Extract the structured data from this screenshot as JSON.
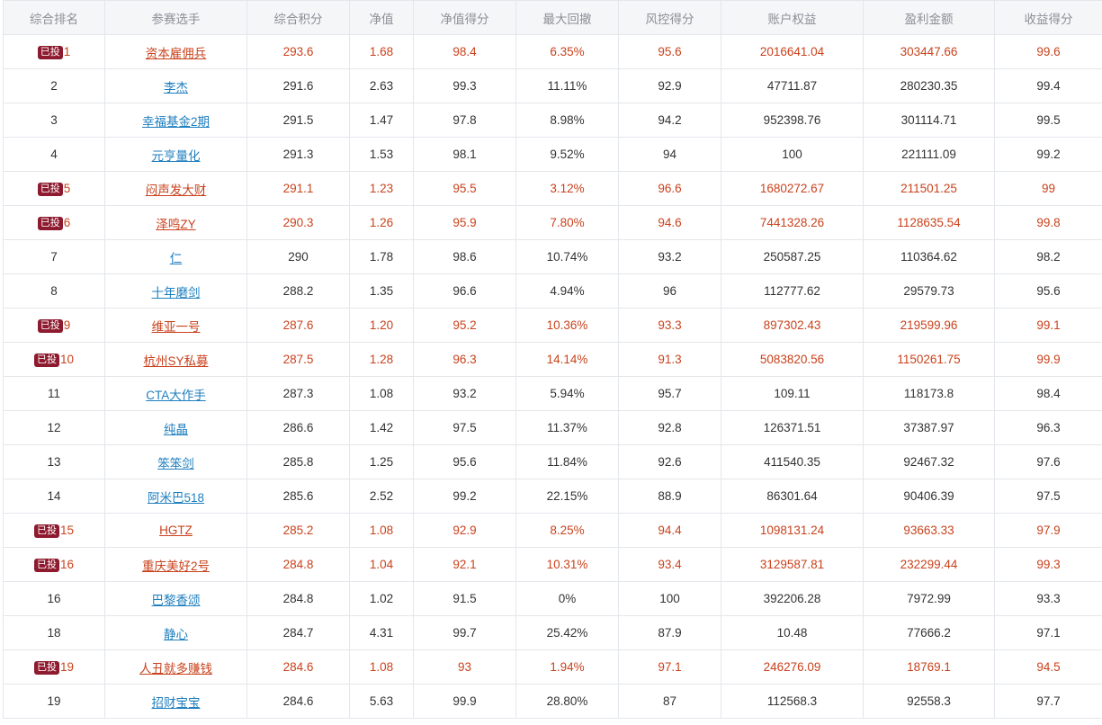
{
  "table": {
    "headers": [
      "综合排名",
      "参赛选手",
      "综合积分",
      "净值",
      "净值得分",
      "最大回撤",
      "风控得分",
      "账户权益",
      "盈利金额",
      "收益得分"
    ],
    "badge_label": "已投",
    "rows": [
      {
        "rank": "1",
        "name": "资本雇佣兵",
        "score": "293.6",
        "nav": "1.68",
        "nav_score": "98.4",
        "max_drawdown": "6.35%",
        "risk_score": "95.6",
        "equity": "2016641.04",
        "profit": "303447.66",
        "return_score": "99.6",
        "invested": true
      },
      {
        "rank": "2",
        "name": "李杰",
        "score": "291.6",
        "nav": "2.63",
        "nav_score": "99.3",
        "max_drawdown": "11.11%",
        "risk_score": "92.9",
        "equity": "47711.87",
        "profit": "280230.35",
        "return_score": "99.4",
        "invested": false
      },
      {
        "rank": "3",
        "name": "幸福基金2期",
        "score": "291.5",
        "nav": "1.47",
        "nav_score": "97.8",
        "max_drawdown": "8.98%",
        "risk_score": "94.2",
        "equity": "952398.76",
        "profit": "301114.71",
        "return_score": "99.5",
        "invested": false
      },
      {
        "rank": "4",
        "name": "元亨量化",
        "score": "291.3",
        "nav": "1.53",
        "nav_score": "98.1",
        "max_drawdown": "9.52%",
        "risk_score": "94",
        "equity": "100",
        "profit": "221111.09",
        "return_score": "99.2",
        "invested": false
      },
      {
        "rank": "5",
        "name": "闷声发大财",
        "score": "291.1",
        "nav": "1.23",
        "nav_score": "95.5",
        "max_drawdown": "3.12%",
        "risk_score": "96.6",
        "equity": "1680272.67",
        "profit": "211501.25",
        "return_score": "99",
        "invested": true
      },
      {
        "rank": "6",
        "name": "泽鸣ZY",
        "score": "290.3",
        "nav": "1.26",
        "nav_score": "95.9",
        "max_drawdown": "7.80%",
        "risk_score": "94.6",
        "equity": "7441328.26",
        "profit": "1128635.54",
        "return_score": "99.8",
        "invested": true
      },
      {
        "rank": "7",
        "name": "仁",
        "score": "290",
        "nav": "1.78",
        "nav_score": "98.6",
        "max_drawdown": "10.74%",
        "risk_score": "93.2",
        "equity": "250587.25",
        "profit": "110364.62",
        "return_score": "98.2",
        "invested": false
      },
      {
        "rank": "8",
        "name": "十年磨剑",
        "score": "288.2",
        "nav": "1.35",
        "nav_score": "96.6",
        "max_drawdown": "4.94%",
        "risk_score": "96",
        "equity": "112777.62",
        "profit": "29579.73",
        "return_score": "95.6",
        "invested": false
      },
      {
        "rank": "9",
        "name": "维亚一号",
        "score": "287.6",
        "nav": "1.20",
        "nav_score": "95.2",
        "max_drawdown": "10.36%",
        "risk_score": "93.3",
        "equity": "897302.43",
        "profit": "219599.96",
        "return_score": "99.1",
        "invested": true
      },
      {
        "rank": "10",
        "name": "杭州SY私募",
        "score": "287.5",
        "nav": "1.28",
        "nav_score": "96.3",
        "max_drawdown": "14.14%",
        "risk_score": "91.3",
        "equity": "5083820.56",
        "profit": "1150261.75",
        "return_score": "99.9",
        "invested": true
      },
      {
        "rank": "11",
        "name": "CTA大作手",
        "score": "287.3",
        "nav": "1.08",
        "nav_score": "93.2",
        "max_drawdown": "5.94%",
        "risk_score": "95.7",
        "equity": "109.11",
        "profit": "118173.8",
        "return_score": "98.4",
        "invested": false
      },
      {
        "rank": "12",
        "name": "纯晶",
        "score": "286.6",
        "nav": "1.42",
        "nav_score": "97.5",
        "max_drawdown": "11.37%",
        "risk_score": "92.8",
        "equity": "126371.51",
        "profit": "37387.97",
        "return_score": "96.3",
        "invested": false
      },
      {
        "rank": "13",
        "name": "笨笨剑",
        "score": "285.8",
        "nav": "1.25",
        "nav_score": "95.6",
        "max_drawdown": "11.84%",
        "risk_score": "92.6",
        "equity": "411540.35",
        "profit": "92467.32",
        "return_score": "97.6",
        "invested": false
      },
      {
        "rank": "14",
        "name": "阿米巴518",
        "score": "285.6",
        "nav": "2.52",
        "nav_score": "99.2",
        "max_drawdown": "22.15%",
        "risk_score": "88.9",
        "equity": "86301.64",
        "profit": "90406.39",
        "return_score": "97.5",
        "invested": false
      },
      {
        "rank": "15",
        "name": "HGTZ",
        "score": "285.2",
        "nav": "1.08",
        "nav_score": "92.9",
        "max_drawdown": "8.25%",
        "risk_score": "94.4",
        "equity": "1098131.24",
        "profit": "93663.33",
        "return_score": "97.9",
        "invested": true
      },
      {
        "rank": "16",
        "name": "重庆美好2号",
        "score": "284.8",
        "nav": "1.04",
        "nav_score": "92.1",
        "max_drawdown": "10.31%",
        "risk_score": "93.4",
        "equity": "3129587.81",
        "profit": "232299.44",
        "return_score": "99.3",
        "invested": true
      },
      {
        "rank": "16",
        "name": "巴黎香颂",
        "score": "284.8",
        "nav": "1.02",
        "nav_score": "91.5",
        "max_drawdown": "0%",
        "risk_score": "100",
        "equity": "392206.28",
        "profit": "7972.99",
        "return_score": "93.3",
        "invested": false
      },
      {
        "rank": "18",
        "name": "静心",
        "score": "284.7",
        "nav": "4.31",
        "nav_score": "99.7",
        "max_drawdown": "25.42%",
        "risk_score": "87.9",
        "equity": "10.48",
        "profit": "77666.2",
        "return_score": "97.1",
        "invested": false
      },
      {
        "rank": "19",
        "name": "人丑就多赚钱",
        "score": "284.6",
        "nav": "1.08",
        "nav_score": "93",
        "max_drawdown": "1.94%",
        "risk_score": "97.1",
        "equity": "246276.09",
        "profit": "18769.1",
        "return_score": "94.5",
        "invested": true
      },
      {
        "rank": "19",
        "name": "招财宝宝",
        "score": "284.6",
        "nav": "5.63",
        "nav_score": "99.9",
        "max_drawdown": "28.80%",
        "risk_score": "87",
        "equity": "112568.3",
        "profit": "92558.3",
        "return_score": "97.7",
        "invested": false
      }
    ]
  }
}
